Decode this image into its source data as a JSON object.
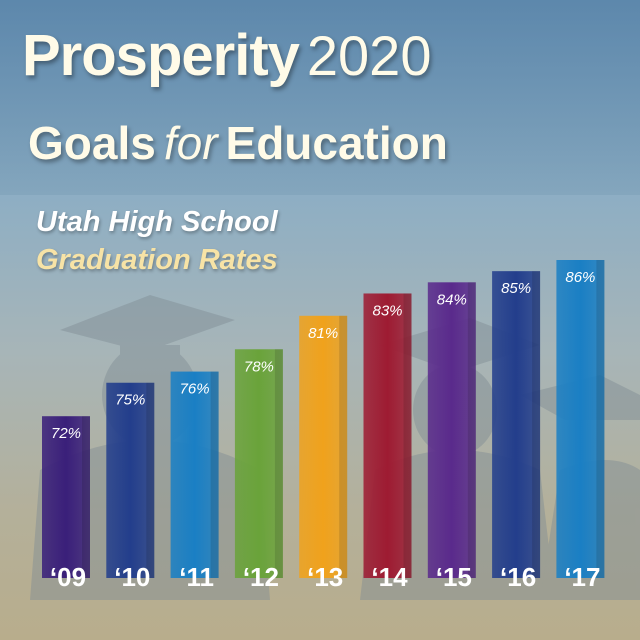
{
  "header": {
    "title_bold": "Prosperity",
    "title_light": "2020",
    "subtitle_goals": "Goals",
    "subtitle_for": "for",
    "subtitle_education": "Education"
  },
  "chart_data": {
    "type": "bar",
    "title": "Utah High School",
    "subtitle": "Graduation Rates",
    "categories": [
      "‘09",
      "‘10",
      "‘11",
      "‘12",
      "‘13",
      "‘14",
      "‘15",
      "‘16",
      "‘17"
    ],
    "values": [
      72,
      75,
      76,
      78,
      81,
      83,
      84,
      85,
      86
    ],
    "value_labels": [
      "72%",
      "75%",
      "76%",
      "78%",
      "81%",
      "83%",
      "84%",
      "85%",
      "86%"
    ],
    "colors": [
      "#3a1f7a",
      "#233e8c",
      "#1a7fc4",
      "#6aa33a",
      "#f0a21c",
      "#9e1b32",
      "#5a2a8c",
      "#233e8c",
      "#1a7fc4"
    ],
    "ylim": [
      57.5,
      86
    ],
    "grid": false
  }
}
